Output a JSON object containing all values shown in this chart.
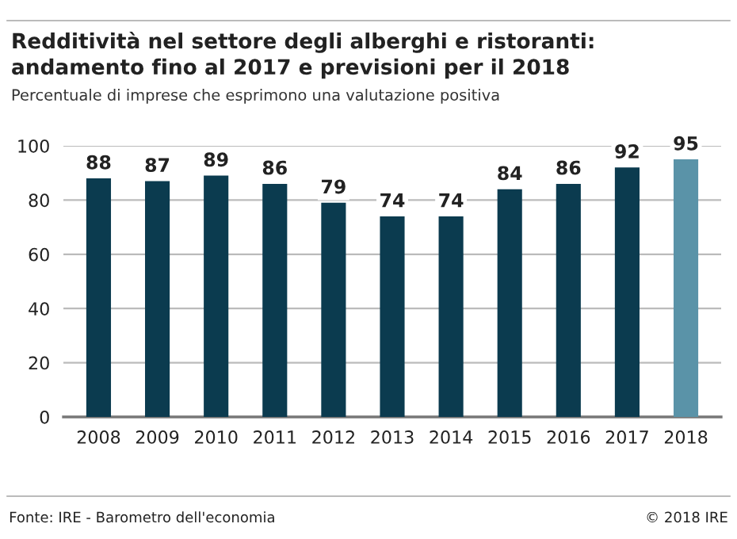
{
  "chart_data": {
    "type": "bar",
    "title": "Redditività nel settore degli alberghi e ristoranti:\nandamento fino al 2017 e previsioni per il 2018",
    "subtitle": "Percentuale di imprese che esprimono una valutazione positiva",
    "categories": [
      "2008",
      "2009",
      "2010",
      "2011",
      "2012",
      "2013",
      "2014",
      "2015",
      "2016",
      "2017",
      "2018"
    ],
    "values": [
      88,
      87,
      89,
      86,
      79,
      74,
      74,
      84,
      86,
      92,
      95
    ],
    "colors": [
      "#0b3b4f",
      "#0b3b4f",
      "#0b3b4f",
      "#0b3b4f",
      "#0b3b4f",
      "#0b3b4f",
      "#0b3b4f",
      "#0b3b4f",
      "#0b3b4f",
      "#0b3b4f",
      "#5a93a8"
    ],
    "ylim": [
      0,
      100
    ],
    "yticks": [
      0,
      20,
      40,
      60,
      80,
      100
    ],
    "grid": "y",
    "data_labels": true,
    "annotations": [
      "Fonte: IRE - Barometro dell'economia",
      "© 2018 IRE"
    ]
  }
}
